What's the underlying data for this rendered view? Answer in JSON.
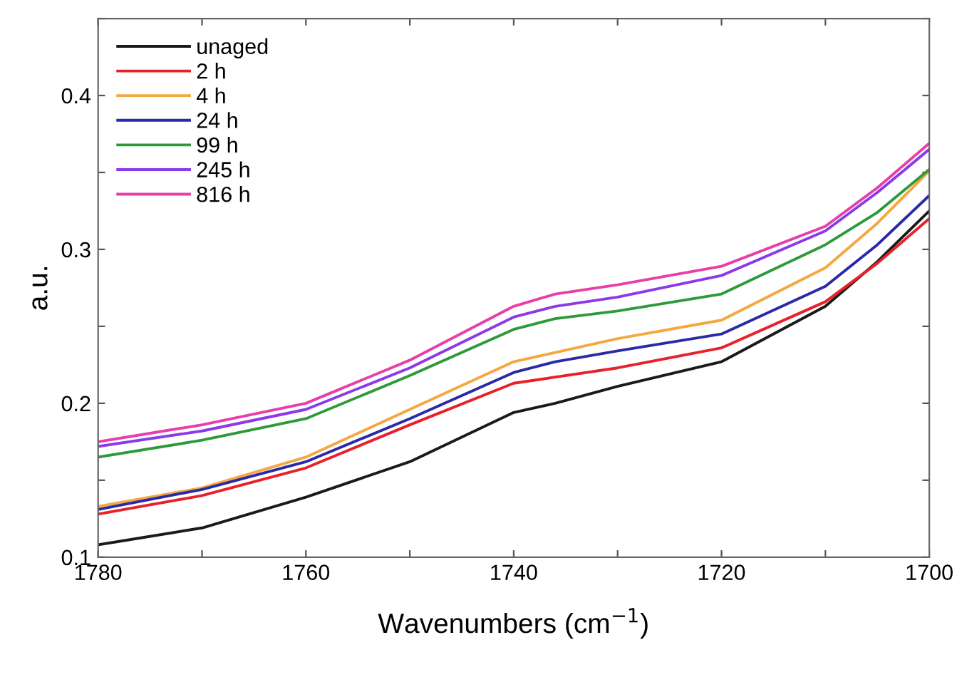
{
  "chart_data": {
    "type": "line",
    "xlabel": "Wavenumbers (cm$^{−1}$)",
    "ylabel": "a.u.",
    "x": [
      1780,
      1770,
      1760,
      1750,
      1740,
      1736,
      1730,
      1720,
      1710,
      1705,
      1700
    ],
    "series": [
      {
        "name": "unaged",
        "color": "#1a1a1a",
        "values": [
          0.108,
          0.119,
          0.139,
          0.162,
          0.194,
          0.2,
          0.211,
          0.227,
          0.263,
          0.292,
          0.325
        ]
      },
      {
        "name": "2 h",
        "color": "#e8202a",
        "values": [
          0.128,
          0.14,
          0.158,
          0.186,
          0.213,
          0.217,
          0.223,
          0.236,
          0.266,
          0.291,
          0.32
        ]
      },
      {
        "name": "4 h",
        "color": "#f5a742",
        "values": [
          0.133,
          0.145,
          0.165,
          0.196,
          0.227,
          0.233,
          0.242,
          0.254,
          0.288,
          0.317,
          0.351
        ]
      },
      {
        "name": "24 h",
        "color": "#2a2aa8",
        "values": [
          0.131,
          0.144,
          0.162,
          0.19,
          0.22,
          0.227,
          0.234,
          0.245,
          0.276,
          0.303,
          0.335
        ]
      },
      {
        "name": "99 h",
        "color": "#2e9a3a",
        "values": [
          0.165,
          0.176,
          0.19,
          0.218,
          0.248,
          0.255,
          0.26,
          0.271,
          0.303,
          0.324,
          0.352
        ]
      },
      {
        "name": "245 h",
        "color": "#8a3ae8",
        "values": [
          0.172,
          0.182,
          0.196,
          0.223,
          0.256,
          0.263,
          0.269,
          0.283,
          0.312,
          0.337,
          0.365
        ]
      },
      {
        "name": "816 h",
        "color": "#e83ea8",
        "values": [
          0.175,
          0.186,
          0.2,
          0.228,
          0.263,
          0.271,
          0.277,
          0.289,
          0.315,
          0.34,
          0.369
        ]
      }
    ],
    "xlim": [
      1780,
      1700
    ],
    "xticks": [
      1780,
      {
        "value": 1770,
        "label": null
      },
      1760,
      {
        "value": 1750,
        "label": null
      },
      1740,
      {
        "value": 1730,
        "label": null
      },
      1720,
      {
        "value": 1710,
        "label": null
      },
      1700
    ],
    "ylim": [
      0.1,
      0.45
    ],
    "yticks": [
      0.1,
      {
        "value": 0.15,
        "label": null
      },
      0.2,
      {
        "value": 0.25,
        "label": null
      },
      0.3,
      {
        "value": 0.35,
        "label": null
      },
      0.4,
      {
        "value": 0.45,
        "label": null
      }
    ],
    "legend": "top left",
    "grid": false
  }
}
